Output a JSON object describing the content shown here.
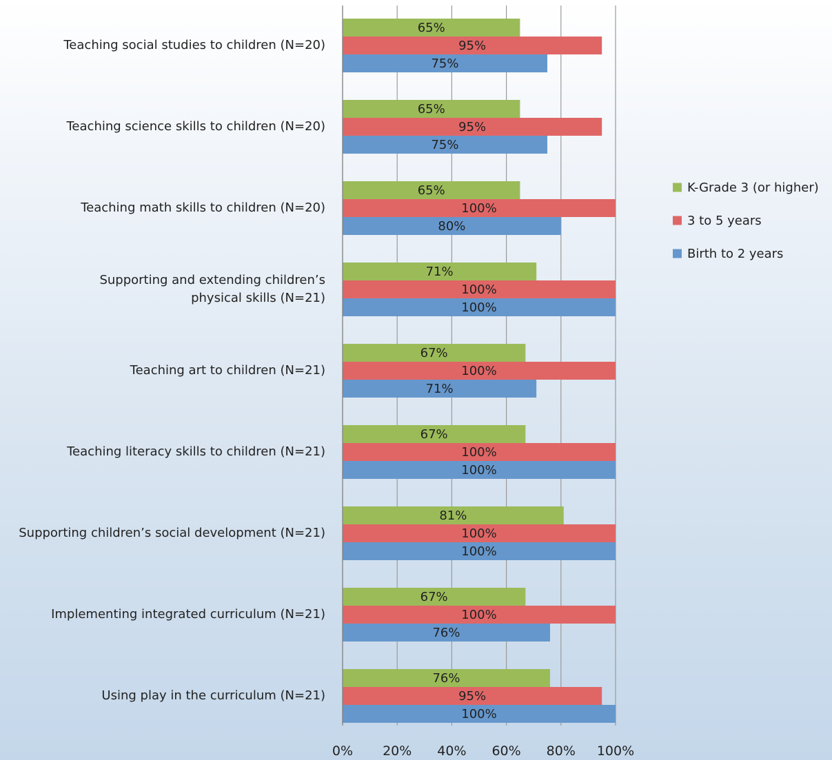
{
  "chart_data": {
    "type": "bar",
    "orientation": "horizontal",
    "categories": [
      "Teaching social studies to children (N=20)",
      "Teaching science skills to children (N=20)",
      "Teaching math skills to children (N=20)",
      "Supporting and extending children’s physical skills (N=21)",
      "Teaching art to children (N=21)",
      "Teaching literacy skills to children (N=21)",
      "Supporting children’s social development (N=21)",
      "Implementing integrated curriculum (N=21)",
      "Using play in the curriculum (N=21)"
    ],
    "category_lines": [
      [
        "Teaching social studies to children (N=20)"
      ],
      [
        "Teaching science skills to children (N=20)"
      ],
      [
        "Teaching math skills to children (N=20)"
      ],
      [
        "Supporting and extending children’s",
        "physical skills (N=21)"
      ],
      [
        "Teaching art to children (N=21)"
      ],
      [
        "Teaching literacy skills to children (N=21)"
      ],
      [
        "Supporting children’s social development (N=21)"
      ],
      [
        "Implementing integrated curriculum (N=21)"
      ],
      [
        "Using play in the curriculum (N=21)"
      ]
    ],
    "series": [
      {
        "name": "K-Grade 3 (or higher)",
        "color": "#9bbb59",
        "values": [
          65,
          65,
          65,
          71,
          67,
          67,
          81,
          67,
          76
        ]
      },
      {
        "name": "3 to 5 years",
        "color": "#e06666",
        "values": [
          95,
          95,
          100,
          100,
          100,
          100,
          100,
          100,
          95
        ]
      },
      {
        "name": "Birth to 2 years",
        "color": "#6597cc",
        "values": [
          75,
          75,
          80,
          100,
          71,
          100,
          100,
          76,
          100
        ]
      }
    ],
    "xlim": [
      0,
      100
    ],
    "x_ticks": [
      0,
      20,
      40,
      60,
      80,
      100
    ],
    "x_tick_labels": [
      "0%",
      "20%",
      "40%",
      "60%",
      "80%",
      "100%"
    ],
    "value_suffix": "%",
    "title": "",
    "xlabel": "",
    "ylabel": "",
    "grid": true,
    "legend_position": "right",
    "colors": {
      "grid": "#9a9a9a",
      "axis": "#808080",
      "text": "#222222"
    }
  }
}
